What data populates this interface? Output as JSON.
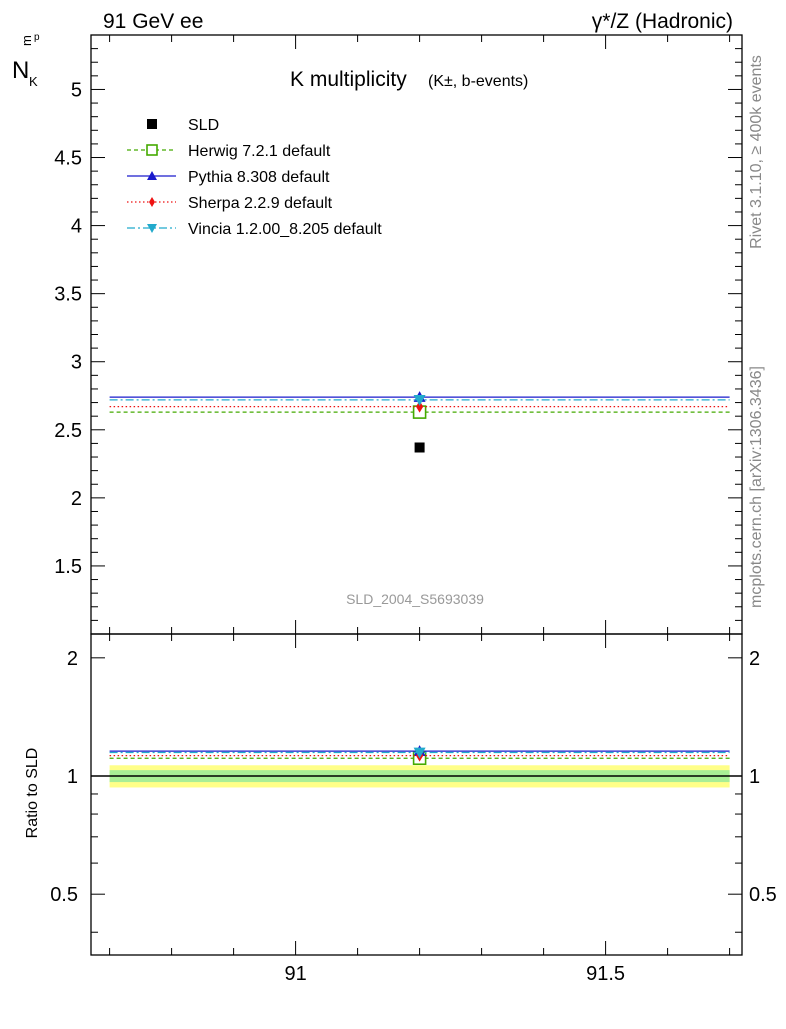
{
  "header": {
    "left": "91 GeV ee",
    "right": "γ*/Z (Hadronic)"
  },
  "side": {
    "rivet": "Rivet 3.1.10, ≥ 400k events",
    "mcplots": "mcplots.cern.ch [arXiv:1306.3436]"
  },
  "chart_data": {
    "type": "scatter",
    "title": "K multiplicity",
    "title_suffix": "(K±, b-events)",
    "ylabel_main": "N",
    "ylabel_sub": "K",
    "ylabel_sup": "p",
    "ylabel_sub2": "m",
    "ylabel_ratio": "Ratio to SLD",
    "analysis_label": "SLD_2004_S5693039",
    "xlim": [
      90.67,
      91.72
    ],
    "ylim": [
      1.0,
      5.4
    ],
    "ratio_ylim": [
      0.35,
      2.3
    ],
    "x_ticks": [
      91,
      91.5
    ],
    "x_tick_labels": [
      "91",
      "91.5"
    ],
    "y_ticks": [
      1.5,
      2,
      2.5,
      3,
      3.5,
      4,
      4.5,
      5
    ],
    "y_tick_labels": [
      "1.5",
      "2",
      "2.5",
      "3",
      "3.5",
      "4",
      "4.5",
      "5"
    ],
    "ratio_ticks": [
      0.5,
      1,
      2
    ],
    "ratio_tick_labels": [
      "0.5",
      "1",
      "2"
    ],
    "bin": [
      90.7,
      91.7
    ],
    "x_point": 91.2,
    "data": {
      "name": "SLD",
      "y": 2.37,
      "ratio_band_inner": 0.035,
      "ratio_band_outer": 0.065
    },
    "series": [
      {
        "name": "Herwig 7.2.1 default",
        "y": 2.63,
        "ratio": 1.11,
        "color": "#44aa00",
        "dash": "4,3",
        "marker": "open-square"
      },
      {
        "name": "Pythia 8.308 default",
        "y": 2.74,
        "ratio": 1.157,
        "color": "#1a1acc",
        "dash": "",
        "marker": "triangle-up"
      },
      {
        "name": "Sherpa 2.2.9 default",
        "y": 2.67,
        "ratio": 1.127,
        "color": "#ee1111",
        "dash": "1.5,2.5",
        "marker": "diamond"
      },
      {
        "name": "Vincia 1.2.00_8.205 default",
        "y": 2.72,
        "ratio": 1.148,
        "color": "#22aacc",
        "dash": "8,3,2,3",
        "marker": "triangle-down"
      }
    ],
    "legend_position": "top-left"
  }
}
